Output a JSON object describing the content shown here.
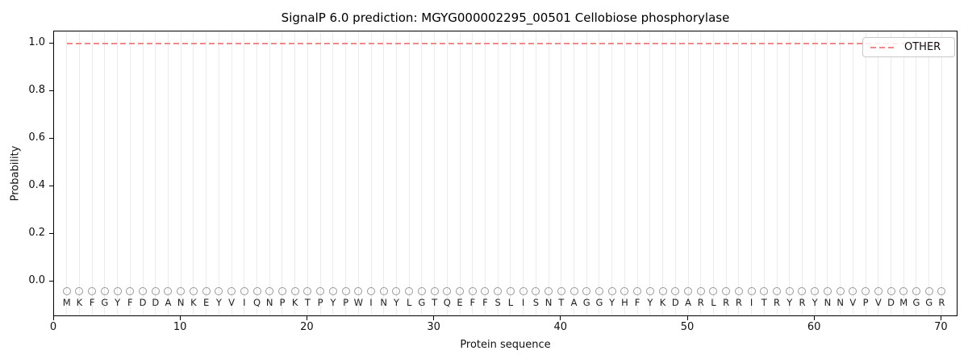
{
  "chart_data": {
    "type": "line",
    "title": "SignalP 6.0 prediction: MGYG000002295_00501 Cellobiose phosphorylase",
    "xlabel": "Protein sequence",
    "ylabel": "Probability",
    "xlim": [
      0,
      71.3
    ],
    "ylim": [
      -0.15,
      1.05
    ],
    "x_ticks": [
      0,
      10,
      20,
      30,
      40,
      50,
      60,
      70
    ],
    "y_ticks": [
      "0.0",
      "0.2",
      "0.4",
      "0.6",
      "0.8",
      "1.0"
    ],
    "grid": {
      "vertical_line_per_residue": true,
      "horizontal": false
    },
    "legend": {
      "position": "upper-right",
      "entries": [
        {
          "label": "OTHER",
          "color": "#f08989",
          "linestyle": "dashed"
        }
      ]
    },
    "series": [
      {
        "name": "OTHER",
        "linestyle": "dashed",
        "color": "#f08989",
        "x_start": 1,
        "x_end": 70,
        "y_constant": 1.0
      }
    ],
    "sequence": "MKFGYFDDANKEYVIQNPKTPYPWINYLGTQEFFSLISNTAGGYHFYKDARLRRITRYRYNNVPVDMGGR",
    "sequence_length": 70,
    "sequence_markers": {
      "shape": "circle-outline",
      "color": "#999999",
      "y_value": -0.04
    },
    "sequence_letters_y_value": -0.09
  },
  "colors": {
    "background": "#ffffff",
    "axis": "#000000",
    "grid": "#ebebeb",
    "other_line": "#f08989",
    "marker_outline": "#999999",
    "letter": "#1f1f1f"
  }
}
